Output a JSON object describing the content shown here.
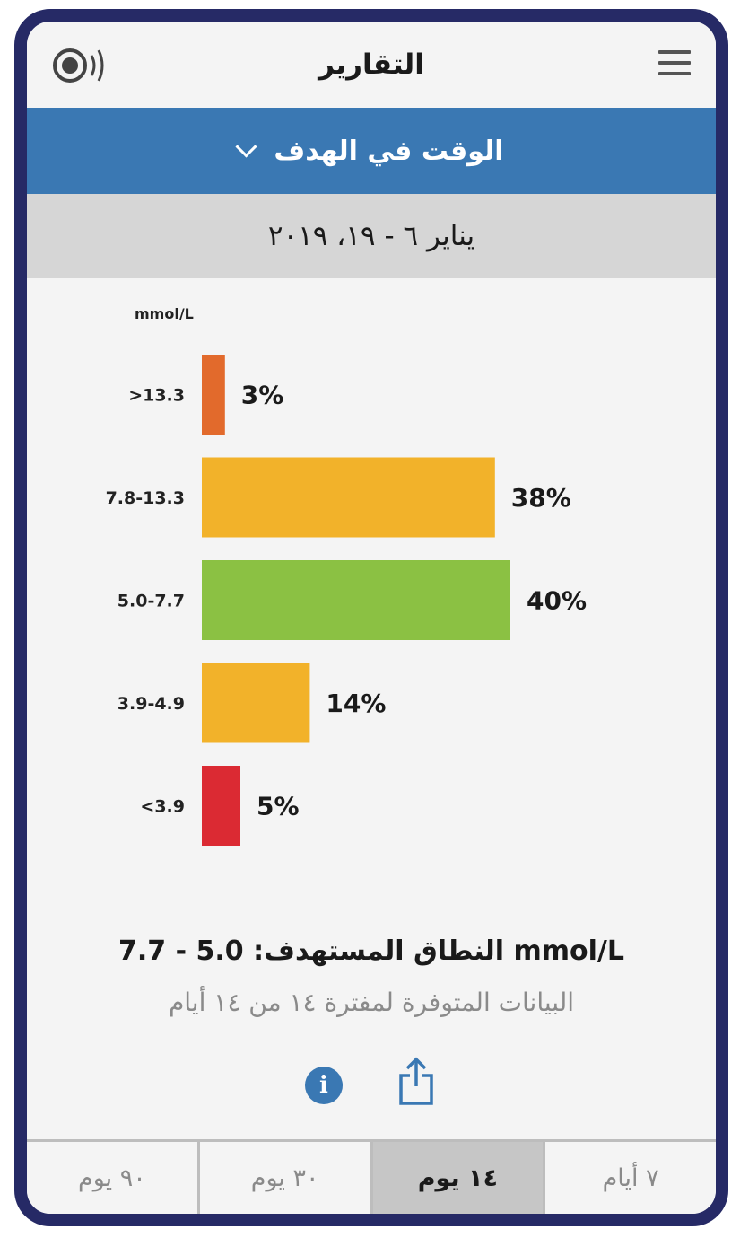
{
  "header": {
    "title": "التقارير"
  },
  "report_selector": {
    "label": "الوقت في الهدف"
  },
  "date_range": "يناير ٦ - ١٩، ٢٠١٩",
  "chart_data": {
    "type": "bar",
    "ylabel": "mmol/L",
    "categories": [
      ">13.3",
      "7.8-13.3",
      "5.0-7.7",
      "3.9-4.9",
      "<3.9"
    ],
    "values": [
      3,
      38,
      40,
      14,
      5
    ],
    "value_labels": [
      "3%",
      "38%",
      "40%",
      "14%",
      "5%"
    ],
    "colors": [
      "#e26a2c",
      "#f2b22a",
      "#8bc143",
      "#f2b22a",
      "#db2a33"
    ],
    "xlim": [
      0,
      40
    ]
  },
  "footer": {
    "target_range": "النطاق المستهدف: 5.0 - 7.7 mmol/L",
    "data_available": "البيانات المتوفرة لمفترة ١٤ من ١٤ أيام"
  },
  "tabs": [
    {
      "label": "٩٠ يوم",
      "active": false
    },
    {
      "label": "٣٠ يوم",
      "active": false
    },
    {
      "label": "١٤ يوم",
      "active": true
    },
    {
      "label": "٧ أيام",
      "active": false
    }
  ],
  "icons": {
    "sensor": "sensor-icon",
    "menu": "menu-icon",
    "info": "info-icon",
    "share": "share-icon"
  },
  "accent_color": "#3a78b3",
  "frame_color": "#262a66"
}
